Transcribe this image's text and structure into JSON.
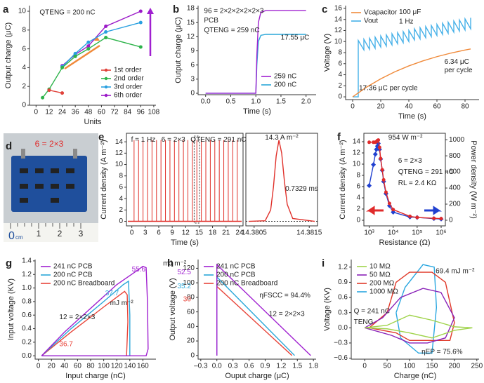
{
  "chart_data": [
    {
      "type": "line",
      "label": "a",
      "annotations": [
        "QTENG = 200 nC"
      ],
      "xlabel": "Units",
      "ylabel": "Output charge (μC)",
      "xlim": [
        -6,
        110
      ],
      "xticks": [
        0,
        12,
        24,
        36,
        48,
        60,
        72,
        84,
        96,
        108
      ],
      "ylim": [
        0,
        10.6
      ],
      "yticks": [
        0,
        2,
        4,
        6,
        8,
        10
      ],
      "legend": "lower right",
      "marker": true,
      "series": [
        {
          "name": "1st order",
          "color": "#e0413a",
          "x": [
            12,
            24
          ],
          "values": [
            1.6,
            1.3
          ]
        },
        {
          "name": "2nd order",
          "color": "#2db34a",
          "x": [
            6,
            12,
            24,
            36,
            48,
            64,
            96
          ],
          "values": [
            0.8,
            1.7,
            4.0,
            5.2,
            6.0,
            7.2,
            6.2
          ]
        },
        {
          "name": "3rd order",
          "color": "#2aa0e0",
          "x": [
            24,
            36,
            48,
            64,
            96
          ],
          "values": [
            4.1,
            5.5,
            6.7,
            7.8,
            8.8
          ]
        },
        {
          "name": "6th order",
          "color": "#9b19c8",
          "x": [
            24,
            36,
            48,
            64,
            96
          ],
          "values": [
            4.2,
            5.4,
            6.3,
            8.4,
            10.0
          ]
        }
      ]
    },
    {
      "type": "line",
      "label": "b",
      "annotations": [
        "96 = 2×2×2×2×2×3",
        "PCB",
        "QTENG = 259 nC",
        "17.55 μC"
      ],
      "xlabel": "Time (s)",
      "ylabel": "Output charge (μC)",
      "xlim": [
        -0.15,
        2.2
      ],
      "xticks": [
        {
          "value": 0,
          "label": "0.0"
        },
        0.5,
        {
          "value": 1,
          "label": "1.0"
        },
        1.5,
        {
          "value": 2,
          "label": "2.0"
        }
      ],
      "ylim": [
        -0.3,
        18.6
      ],
      "yticks": [
        0,
        3,
        6,
        9,
        12,
        15,
        18
      ],
      "legend": "lower right",
      "series": [
        {
          "name": "259 nC",
          "color": "#a020d0",
          "x": [
            0,
            1.0,
            1.02,
            1.05,
            1.1,
            1.2,
            2.0
          ],
          "values": [
            0,
            0,
            8,
            15,
            17.2,
            17.55,
            17.55
          ]
        },
        {
          "name": "200 nC",
          "color": "#2aa7d9",
          "x": [
            0,
            1.0,
            1.02,
            1.05,
            1.1,
            1.2,
            2.0
          ],
          "values": [
            0,
            0,
            6,
            11,
            12.3,
            12.5,
            12.5
          ]
        }
      ]
    },
    {
      "type": "line",
      "label": "c",
      "annotations": [
        "100 μF",
        "1 Hz",
        "6.34 μC",
        "per cycle",
        "17.36 μC per cycle"
      ],
      "xlabel": "Time (s)",
      "ylabel": "Voltage (V)",
      "xlim": [
        -5,
        90
      ],
      "xticks": [
        0,
        20,
        40,
        60,
        80
      ],
      "ylim": [
        -0.5,
        16.5
      ],
      "yticks": [
        0,
        2,
        4,
        6,
        8,
        10,
        12,
        14,
        16
      ],
      "legend": "upper left",
      "series": [
        {
          "name": "Vcapacitor",
          "color": "#f08a3a",
          "x": [
            0,
            10,
            20,
            30,
            40,
            50,
            60,
            70,
            80,
            84
          ],
          "values": [
            0,
            1.77,
            3.26,
            4.53,
            5.6,
            6.5,
            7.27,
            7.92,
            8.47,
            8.66
          ]
        },
        {
          "name": "Vout",
          "color": "#45b0e8",
          "x": [
            0,
            4,
            4,
            8,
            8,
            12,
            12,
            16,
            16,
            20,
            20,
            24,
            24,
            28,
            28,
            32,
            32,
            36,
            36,
            40,
            40,
            44,
            44,
            48,
            48,
            52,
            52,
            56,
            56,
            60,
            60,
            64,
            64,
            68,
            68,
            72,
            72,
            76,
            76,
            80,
            80,
            84,
            84
          ],
          "values": [
            0,
            0,
            10.2,
            8.5,
            10.4,
            8.6,
            10.6,
            8.8,
            10.8,
            9.0,
            11.0,
            9.2,
            11.2,
            9.4,
            11.4,
            9.6,
            11.6,
            9.8,
            11.8,
            10.0,
            12.0,
            10.3,
            12.3,
            10.5,
            12.5,
            10.7,
            12.7,
            10.9,
            12.9,
            11.1,
            13.1,
            11.3,
            13.3,
            11.5,
            13.5,
            11.7,
            13.7,
            11.9,
            13.9,
            12.1,
            14.1,
            12.3,
            14.3
          ]
        }
      ]
    },
    {
      "type": "image",
      "label": "d",
      "annotations": [
        "6 = 2×3"
      ],
      "ruler": [
        "0",
        "1",
        "2",
        "3"
      ],
      "unit": "cm"
    },
    {
      "type": "spike",
      "label": "e",
      "annotations": [
        "f = 1 Hz",
        "6 = 2×3",
        "QTENG = 291 nC"
      ],
      "xlabel": "Time (s)",
      "ylabel": "Current density (A m⁻²)",
      "xlim": [
        -1.2,
        24.8
      ],
      "xticks": [
        0,
        3,
        6,
        9,
        12,
        15,
        18,
        21,
        24
      ],
      "ylim": [
        -0.8,
        15.5
      ],
      "yticks": [
        0,
        2,
        4,
        6,
        8,
        10,
        12,
        14
      ],
      "color": "#e0302a",
      "x": [
        0.5,
        1.5,
        2.5,
        3.5,
        4.5,
        5.5,
        6.5,
        7.5,
        8.5,
        9.5,
        10.5,
        11.5,
        12.5,
        13.5,
        14.5,
        15.5,
        16.5,
        17.5,
        18.5,
        19.5,
        20.5,
        21.5,
        22.5,
        23.5
      ],
      "values": [
        14.3,
        14.3,
        14.3,
        14.3,
        14.3,
        14.3,
        14.3,
        14.3,
        14.3,
        14.3,
        14.3,
        14.3,
        14.3,
        14.3,
        14.3,
        14.3,
        14.3,
        14.3,
        14.3,
        14.3,
        14.3,
        14.3,
        14.3,
        14.3
      ]
    },
    {
      "type": "line",
      "annotations": [
        "14.3 A m⁻²",
        "0.7329 ms"
      ],
      "xlim": [
        14.38035,
        14.38165
      ],
      "xticks": [
        14.3805,
        14.3815
      ],
      "ylim": [
        -0.8,
        15.5
      ],
      "series": [
        {
          "color": "#e0302a",
          "x": [
            14.3804,
            14.3807,
            14.3808,
            14.38085,
            14.3809,
            14.38095,
            14.381,
            14.38105,
            14.3811,
            14.3812,
            14.3816
          ],
          "values": [
            0,
            0.1,
            2,
            6,
            11.5,
            14.3,
            12,
            7,
            3,
            0.5,
            0
          ]
        }
      ]
    },
    {
      "type": "line",
      "label": "f",
      "annotations": [
        "954 W m⁻²",
        "6 = 2×3",
        "QTENG = 291 nC",
        "RL = 2.4 KΩ"
      ],
      "xlabel": "Resistance (Ω)",
      "ylabel": "Current density (A m⁻²)",
      "y2label": "Power density (W m⁻²)",
      "xlog": true,
      "xlim": [
        600,
        1500000
      ],
      "xticks": [
        {
          "value": 1000,
          "label": "10³"
        },
        {
          "value": 10000,
          "label": "10⁴"
        },
        {
          "value": 100000,
          "label": "10⁵"
        },
        {
          "value": 1000000,
          "label": "10⁶"
        }
      ],
      "ylim": [
        -1,
        15.5
      ],
      "yticks": [
        0,
        2,
        4,
        6,
        8,
        10,
        12,
        14
      ],
      "y2lim": [
        -70,
        1080
      ],
      "y2ticks": [
        0,
        200,
        400,
        600,
        800,
        1000
      ],
      "marker": true,
      "series": [
        {
          "color": "#e02a2a",
          "marker": "circle",
          "x": [
            1000,
            1500,
            1800,
            2000,
            2200,
            2400,
            2700,
            3000,
            3500,
            4000,
            5000,
            7000,
            10000,
            50000,
            100000,
            500000,
            1000000
          ],
          "values": [
            13.9,
            13.9,
            13.9,
            14.0,
            14.2,
            14.3,
            13.0,
            11.0,
            9.0,
            7.2,
            5.0,
            3.0,
            1.9,
            0.7,
            0.5,
            0.35,
            0.3
          ]
        },
        {
          "color": "#2040d0",
          "marker": "diamond",
          "axis": "y2",
          "x": [
            1000,
            1500,
            1800,
            2000,
            2200,
            2400,
            2700,
            3000,
            3500,
            4000,
            5000,
            7000,
            10000,
            50000,
            100000,
            500000,
            1000000
          ],
          "values": [
            430,
            690,
            820,
            880,
            920,
            954,
            880,
            760,
            620,
            480,
            330,
            180,
            100,
            40,
            35,
            20,
            15
          ]
        }
      ]
    },
    {
      "type": "line",
      "label": "g",
      "annotations": [
        "55.6",
        "37.7",
        "mJ m⁻²",
        "36.7",
        "12 = 2×2×3"
      ],
      "xlabel": "Input charge (nC)",
      "ylabel": "Input voltage (KV)",
      "xlim": [
        -5,
        180
      ],
      "xticks": [
        0,
        20,
        40,
        60,
        80,
        100,
        120,
        140,
        160
      ],
      "ylim": [
        -0.05,
        1.42
      ],
      "yticks": [
        {
          "value": 0,
          "label": "0.0"
        },
        0.2,
        0.4,
        0.6,
        0.8,
        {
          "value": 1,
          "label": "1.0"
        },
        1.2,
        1.4
      ],
      "legend": "upper left",
      "series": [
        {
          "name": "241 nC PCB",
          "color": "#a020d0",
          "x": [
            5,
            40,
            80,
            120,
            150,
            160,
            165,
            167,
            168,
            165,
            5
          ],
          "values": [
            0,
            0.35,
            0.7,
            1.05,
            1.25,
            1.32,
            1.3,
            0.8,
            0.1,
            0,
            0
          ]
        },
        {
          "name": "200 nC PCB",
          "color": "#2aa7d9",
          "x": [
            5,
            50,
            100,
            130,
            138,
            140,
            140,
            5
          ],
          "values": [
            0,
            0.4,
            0.8,
            1.05,
            1.1,
            0.6,
            0,
            0
          ]
        },
        {
          "name": "200 nC Breadboard",
          "color": "#e8453a",
          "x": [
            5,
            50,
            100,
            125,
            132,
            136,
            137,
            135,
            5
          ],
          "values": [
            0,
            0.35,
            0.72,
            0.9,
            0.95,
            0.9,
            0.5,
            0,
            0
          ]
        }
      ]
    },
    {
      "type": "line",
      "label": "h",
      "annotations": [
        "mJ m⁻²",
        "52.5",
        "35.2",
        "30",
        "ηFSCC = 94.4%",
        "12 = 2×2×3"
      ],
      "xlabel": "Ouput charge (μC)",
      "ylabel": "Output voltage (V)",
      "xlim": [
        -0.35,
        1.85
      ],
      "xticks": [
        {
          "value": -0.3,
          "label": "–0.3"
        },
        {
          "value": 0,
          "label": "0.0"
        },
        0.3,
        0.6,
        0.9,
        1.2,
        1.5,
        1.8
      ],
      "ylim": [
        -5,
        132
      ],
      "yticks": [
        0,
        20,
        40,
        60,
        80,
        100,
        120
      ],
      "legend": "upper left",
      "series": [
        {
          "name": "241 nC PCB",
          "color": "#a020d0",
          "x": [
            0,
            0,
            1.75
          ],
          "values": [
            0,
            125,
            0
          ]
        },
        {
          "name": "200 nC PCB",
          "color": "#2aa7d9",
          "x": [
            0,
            0,
            1.45
          ],
          "values": [
            0,
            108,
            0
          ]
        },
        {
          "name": "200 nC Breadboard",
          "color": "#e8453a",
          "x": [
            0,
            0,
            1.4
          ],
          "values": [
            0,
            95,
            0
          ]
        }
      ]
    },
    {
      "type": "line",
      "label": "i",
      "annotations": [
        "69.4 mJ m⁻²",
        "Q = 241 nC",
        "TENG",
        "ηEP = 75.6%"
      ],
      "xlabel": "Charge (nC)",
      "ylabel": "Voltage (KV)",
      "xlim": [
        -30,
        255
      ],
      "xticks": [
        0,
        50,
        100,
        150,
        200,
        250
      ],
      "ylim": [
        -0.62,
        1.35
      ],
      "yticks": [
        {
          "value": -0.6,
          "label": "−0.6"
        },
        {
          "value": -0.3,
          "label": "−0.3"
        },
        {
          "value": 0,
          "label": "0.0"
        },
        0.3,
        0.6,
        0.9,
        1.2
      ],
      "legend": "upper left",
      "series": [
        {
          "name": "10 MΩ",
          "color": "#9fd34a",
          "x": [
            0,
            50,
            100,
            150,
            200,
            240,
            200,
            150,
            100,
            50,
            0
          ],
          "values": [
            0,
            0.05,
            0.25,
            0.15,
            0.02,
            0,
            -0.05,
            -0.2,
            -0.1,
            -0.02,
            0
          ]
        },
        {
          "name": "50 MΩ",
          "color": "#8a22b8",
          "x": [
            0,
            40,
            80,
            130,
            170,
            200,
            180,
            140,
            100,
            60,
            0
          ],
          "values": [
            0,
            0.2,
            0.6,
            0.78,
            0.7,
            0.2,
            -0.2,
            -0.3,
            -0.3,
            -0.15,
            0
          ]
        },
        {
          "name": "200 MΩ",
          "color": "#e03a2a",
          "x": [
            10,
            50,
            70,
            100,
            150,
            180,
            200,
            190,
            100,
            70,
            10
          ],
          "values": [
            0,
            0.3,
            0.9,
            1.1,
            1.1,
            0.9,
            0.1,
            -0.25,
            -0.25,
            -0.1,
            0
          ]
        },
        {
          "name": "1000 MΩ",
          "color": "#2aa7e0",
          "x": [
            70,
            90,
            130,
            155,
            160,
            150,
            120,
            80,
            70
          ],
          "values": [
            0.3,
            0.8,
            1.25,
            1.2,
            0.4,
            -0.5,
            -0.5,
            -0.2,
            0.3
          ]
        }
      ]
    }
  ]
}
